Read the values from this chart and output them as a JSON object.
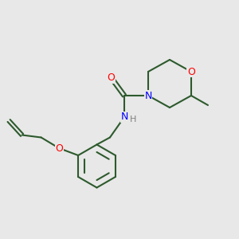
{
  "bg_color": "#e8e8e8",
  "bond_color": "#2d5a2d",
  "atom_colors": {
    "O": "#ff0000",
    "N": "#0000ff",
    "H": "#808080"
  },
  "lw": 1.5,
  "fs": 9
}
